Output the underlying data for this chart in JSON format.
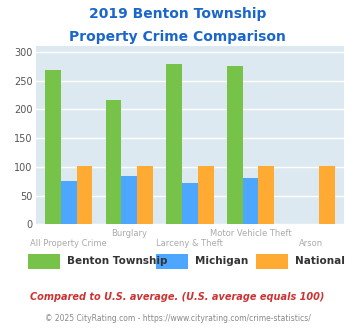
{
  "title_line1": "2019 Benton Township",
  "title_line2": "Property Crime Comparison",
  "title_color": "#1a66cc",
  "categories": [
    "All Property Crime",
    "Burglary",
    "Larceny & Theft",
    "Motor Vehicle Theft",
    "Arson"
  ],
  "benton_values": [
    268,
    216,
    279,
    275,
    0
  ],
  "michigan_values": [
    75,
    84,
    72,
    81,
    0
  ],
  "national_values": [
    101,
    102,
    102,
    102,
    102
  ],
  "benton_color": "#77c34a",
  "michigan_color": "#4da6ff",
  "national_color": "#ffaa33",
  "ylim": [
    0,
    310
  ],
  "yticks": [
    0,
    50,
    100,
    150,
    200,
    250,
    300
  ],
  "background_color": "#dde9f0",
  "grid_color": "#ffffff",
  "xlabel_color": "#aaaaaa",
  "legend_labels": [
    "Benton Township",
    "Michigan",
    "National"
  ],
  "footnote1": "Compared to U.S. average. (U.S. average equals 100)",
  "footnote2": "© 2025 CityRating.com - https://www.cityrating.com/crime-statistics/",
  "footnote1_color": "#cc3333",
  "footnote2_color": "#888888",
  "label_row1": [
    "",
    "Burglary",
    "",
    "Motor Vehicle Theft",
    ""
  ],
  "label_row2": [
    "All Property Crime",
    "",
    "Larceny & Theft",
    "",
    "Arson"
  ]
}
